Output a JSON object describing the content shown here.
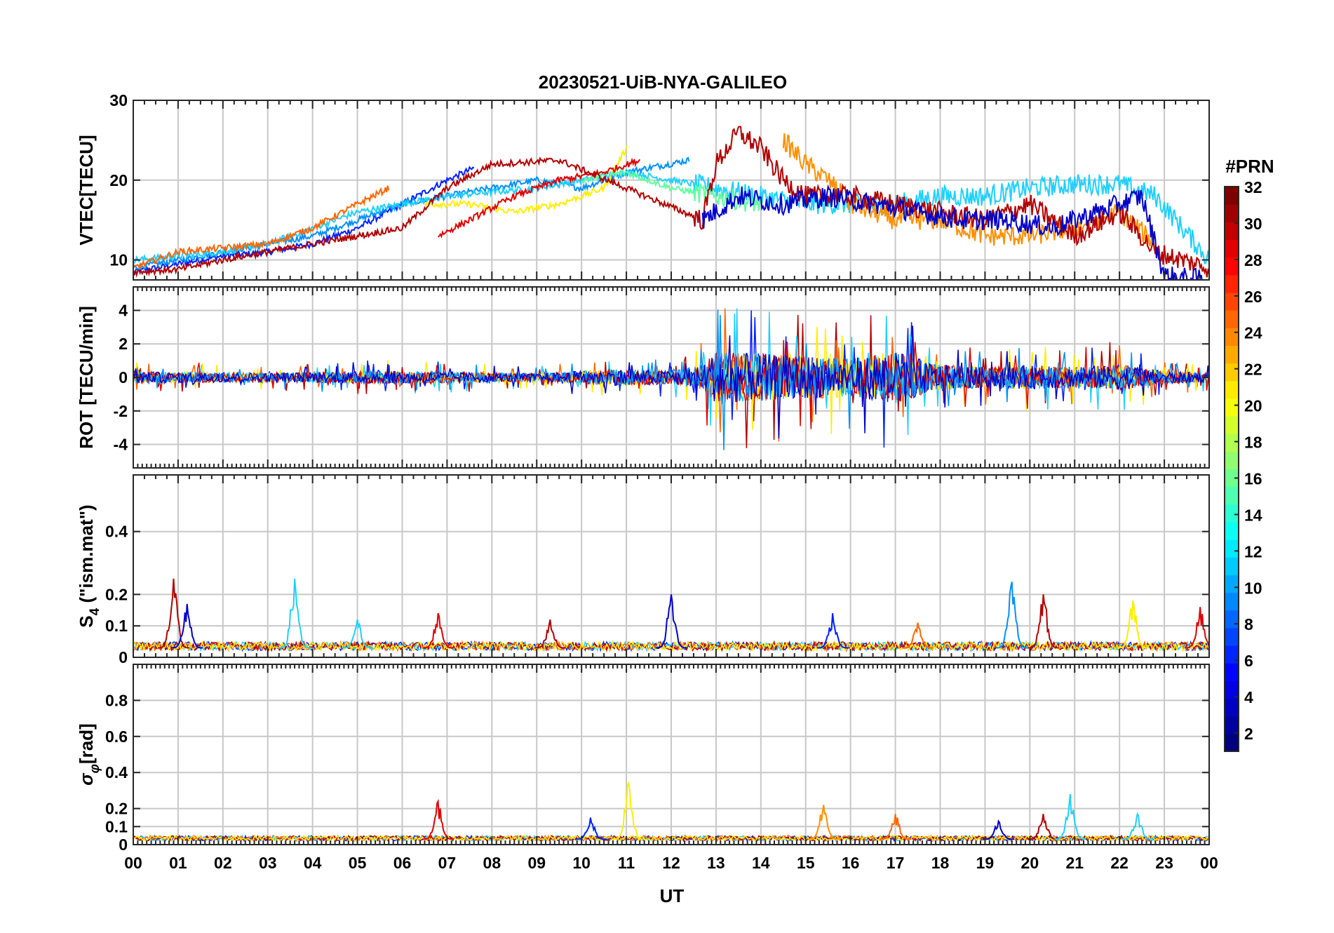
{
  "figure": {
    "title": "20230521-UiB-NYA-GALILEO",
    "xlabel": "UT",
    "xticks": [
      "00",
      "01",
      "02",
      "03",
      "04",
      "05",
      "06",
      "07",
      "08",
      "09",
      "10",
      "11",
      "12",
      "13",
      "14",
      "15",
      "16",
      "17",
      "18",
      "19",
      "20",
      "21",
      "22",
      "23",
      "00"
    ]
  },
  "colorbar": {
    "label": "#PRN",
    "ticks": [
      "2",
      "4",
      "6",
      "8",
      "10",
      "12",
      "14",
      "16",
      "18",
      "20",
      "22",
      "24",
      "26",
      "28",
      "30",
      "32"
    ],
    "range": [
      1,
      32
    ],
    "colormap": "jet"
  },
  "chart_data": [
    {
      "type": "line",
      "panel": "vtec",
      "ylabel": "VTEC[TECU]",
      "xlim": [
        0,
        24
      ],
      "ylim": [
        7.5,
        30
      ],
      "yticks": [
        10,
        20,
        30
      ],
      "ytick_labels": [
        "10",
        "20",
        "30"
      ],
      "grid": true,
      "series": [
        {
          "prn": 5,
          "color": "#0020ff",
          "x": [
            0,
            1,
            2,
            3,
            4,
            5,
            6,
            7,
            7.6
          ],
          "y": [
            8.5,
            9.5,
            10.5,
            11,
            12,
            14,
            17,
            20,
            21.5
          ]
        },
        {
          "prn": 9,
          "color": "#0090ff",
          "x": [
            0,
            1,
            2,
            3,
            4,
            5,
            6,
            7,
            8,
            9,
            10,
            11,
            12.4
          ],
          "y": [
            9,
            10,
            11,
            12,
            13,
            15,
            17,
            18,
            19,
            20,
            19,
            21,
            22.5
          ]
        },
        {
          "prn": 11,
          "color": "#20d0ff",
          "x": [
            0,
            1,
            2,
            3,
            4,
            5,
            6,
            7,
            8,
            9,
            10,
            11,
            12,
            13,
            14,
            15,
            16,
            17,
            18,
            19,
            20,
            21,
            22,
            22.8,
            24
          ],
          "y": [
            10,
            10.5,
            11,
            12,
            14,
            16,
            17,
            18,
            18.5,
            19,
            20,
            21,
            20,
            19,
            18,
            17,
            17,
            17,
            18,
            18,
            19,
            19.5,
            19.5,
            18,
            10
          ]
        },
        {
          "prn": 19,
          "color": "#ffee00",
          "x": [
            6.5,
            7.5,
            8.5,
            9.5,
            10.5,
            11
          ],
          "y": [
            17,
            17,
            16,
            17,
            19,
            24
          ]
        },
        {
          "prn": 15,
          "color": "#60ffa0",
          "x": [
            10,
            11,
            12,
            13,
            14
          ],
          "y": [
            20,
            21,
            19,
            18,
            17
          ]
        },
        {
          "prn": 26,
          "color": "#ff6600",
          "x": [
            0,
            1,
            2,
            3,
            4,
            5,
            5.7
          ],
          "y": [
            9,
            11,
            11.5,
            12,
            14,
            17,
            19
          ]
        },
        {
          "prn": 24,
          "color": "#ff9000",
          "x": [
            14.5,
            15,
            15.5,
            16,
            16.5,
            17,
            18,
            19,
            20,
            21,
            22,
            22.8
          ],
          "y": [
            25,
            22,
            20,
            17,
            16,
            15,
            15,
            13,
            13,
            14,
            16,
            12
          ]
        },
        {
          "prn": 29,
          "color": "#e00000",
          "x": [
            6.8,
            7.5,
            8.5,
            9.5,
            10.5,
            11.3
          ],
          "y": [
            13,
            15,
            18,
            20,
            21,
            22.5
          ]
        },
        {
          "prn": 31,
          "color": "#b00000",
          "x": [
            0,
            1,
            2,
            3,
            4,
            5,
            6,
            7,
            8,
            9.5,
            12.7,
            13,
            13.5,
            14,
            14.5,
            15,
            16,
            17,
            18,
            19,
            20,
            21,
            22,
            22.8,
            24
          ],
          "y": [
            8.5,
            8.8,
            10,
            11,
            12,
            13,
            14,
            19,
            22,
            22.5,
            15,
            22,
            26,
            24,
            20,
            18,
            18,
            17,
            16,
            15,
            17,
            13,
            16,
            11,
            9
          ]
        },
        {
          "prn": 3,
          "color": "#0000c8",
          "x": [
            12.7,
            13.5,
            14.5,
            15.5,
            16.5,
            17.5,
            18.5,
            19.5,
            20.5,
            21.5,
            22.5,
            23,
            24
          ],
          "y": [
            15,
            18,
            17,
            18,
            17,
            16,
            15,
            15,
            14,
            16,
            18,
            8,
            7.5
          ]
        }
      ]
    },
    {
      "type": "line",
      "panel": "rot",
      "ylabel": "ROT [TECU/min]",
      "xlim": [
        0,
        24
      ],
      "ylim": [
        -5.4,
        5.4
      ],
      "yticks": [
        -4,
        -2,
        0,
        2,
        4
      ],
      "ytick_labels": [
        "-4",
        "-2",
        "0",
        "2",
        "4"
      ],
      "grid": true,
      "activity": {
        "x": [
          0,
          3,
          6,
          9,
          10,
          11,
          12,
          12.6,
          13,
          14,
          15,
          16,
          17,
          18,
          19,
          20,
          21,
          22,
          23,
          24
        ],
        "amplitude": [
          0.6,
          0.5,
          0.7,
          0.4,
          0.7,
          0.9,
          0.7,
          1.2,
          2.8,
          2.6,
          2.3,
          2.1,
          2.8,
          1.4,
          1.1,
          1.3,
          1.1,
          1.4,
          0.7,
          0.5
        ]
      },
      "series_prns": [
        31,
        24,
        5,
        11,
        19,
        29,
        9,
        3
      ]
    },
    {
      "type": "line",
      "panel": "s4",
      "ylabel": "S4 (\"ism.mat\")",
      "ylabel_main": "S",
      "ylabel_sub": "4",
      "ylabel_rest": " (\"ism.mat\")",
      "xlim": [
        0,
        24
      ],
      "ylim": [
        0,
        0.58
      ],
      "yticks": [
        0,
        0.1,
        0.2,
        0.4
      ],
      "ytick_labels": [
        "0",
        "0.1",
        "0.2",
        "0.4"
      ],
      "grid": true,
      "baseline": 0.03,
      "spikes": [
        {
          "x": 0.9,
          "y": 0.25,
          "color": "#b00000"
        },
        {
          "x": 1.2,
          "y": 0.17,
          "color": "#0000c8"
        },
        {
          "x": 3.6,
          "y": 0.25,
          "color": "#20d0ff"
        },
        {
          "x": 5.0,
          "y": 0.12,
          "color": "#20d0ff"
        },
        {
          "x": 6.8,
          "y": 0.14,
          "color": "#e00000"
        },
        {
          "x": 9.3,
          "y": 0.12,
          "color": "#b00000"
        },
        {
          "x": 12.0,
          "y": 0.2,
          "color": "#0000c8"
        },
        {
          "x": 15.6,
          "y": 0.14,
          "color": "#0020ff"
        },
        {
          "x": 17.5,
          "y": 0.11,
          "color": "#ff6600"
        },
        {
          "x": 19.6,
          "y": 0.24,
          "color": "#0090ff"
        },
        {
          "x": 20.3,
          "y": 0.2,
          "color": "#b00000"
        },
        {
          "x": 22.3,
          "y": 0.18,
          "color": "#ffee00"
        },
        {
          "x": 23.8,
          "y": 0.16,
          "color": "#e00000"
        }
      ]
    },
    {
      "type": "line",
      "panel": "sigma_phi",
      "ylabel": "σφ[rad]",
      "ylabel_main": "σ",
      "ylabel_sub": "φ",
      "ylabel_rest": "[rad]",
      "xlim": [
        0,
        24
      ],
      "ylim": [
        0,
        1.0
      ],
      "yticks": [
        0,
        0.1,
        0.2,
        0.4,
        0.6,
        0.8
      ],
      "ytick_labels": [
        "0",
        "0.1",
        "0.2",
        "0.4",
        "0.6",
        "0.8"
      ],
      "grid": true,
      "baseline": 0.03,
      "spikes": [
        {
          "x": 6.8,
          "y": 0.24,
          "color": "#e00000"
        },
        {
          "x": 10.2,
          "y": 0.15,
          "color": "#0020ff"
        },
        {
          "x": 11.05,
          "y": 0.34,
          "color": "#ffee00"
        },
        {
          "x": 15.4,
          "y": 0.22,
          "color": "#ff9000"
        },
        {
          "x": 17.0,
          "y": 0.17,
          "color": "#ff6600"
        },
        {
          "x": 19.3,
          "y": 0.13,
          "color": "#0000c8"
        },
        {
          "x": 20.3,
          "y": 0.17,
          "color": "#b00000"
        },
        {
          "x": 20.9,
          "y": 0.28,
          "color": "#20d0ff"
        },
        {
          "x": 22.4,
          "y": 0.17,
          "color": "#20d0ff"
        }
      ]
    }
  ]
}
